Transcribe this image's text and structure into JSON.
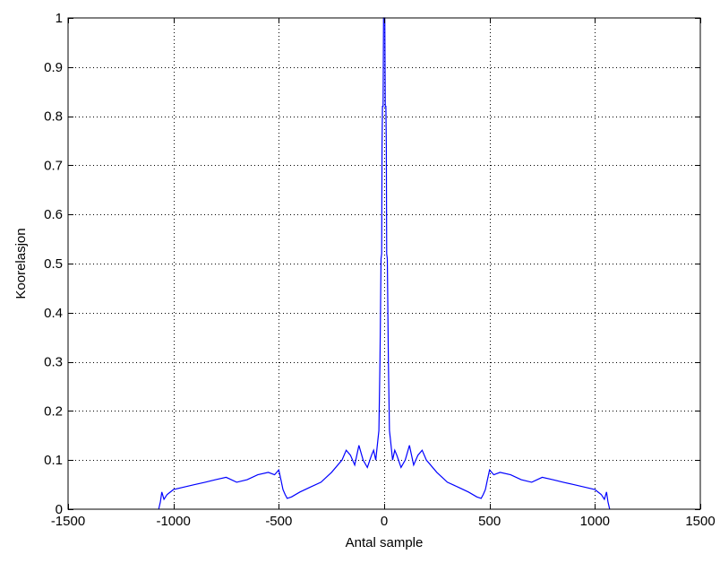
{
  "chart_data": {
    "type": "line",
    "title": "",
    "xlabel": "Antal sample",
    "ylabel": "Koorelasjon",
    "xlim": [
      -1500,
      1500
    ],
    "ylim": [
      0,
      1
    ],
    "xticks": [
      -1500,
      -1000,
      -500,
      0,
      500,
      1000,
      1500
    ],
    "xtick_labels": [
      "-1500",
      "-1000",
      "-500",
      "0",
      "500",
      "1000",
      "1500"
    ],
    "yticks": [
      0,
      0.1,
      0.2,
      0.3,
      0.4,
      0.5,
      0.6,
      0.7,
      0.8,
      0.9,
      1
    ],
    "ytick_labels": [
      "0",
      "0.1",
      "0.2",
      "0.3",
      "0.4",
      "0.5",
      "0.6",
      "0.7",
      "0.8",
      "0.9",
      "1"
    ],
    "grid": true,
    "legend": false,
    "series": [
      {
        "color": "#0000ff",
        "x": [
          -1070,
          -1062,
          -1055,
          -1045,
          -1030,
          -1000,
          -950,
          -900,
          -850,
          -800,
          -750,
          -700,
          -650,
          -600,
          -550,
          -520,
          -500,
          -490,
          -480,
          -470,
          -460,
          -440,
          -400,
          -350,
          -300,
          -250,
          -200,
          -180,
          -160,
          -140,
          -120,
          -100,
          -80,
          -60,
          -50,
          -40,
          -30,
          -25,
          -20,
          -15,
          -12,
          -10,
          -8,
          -5,
          -3,
          0,
          3,
          5,
          8,
          10,
          12,
          15,
          20,
          25,
          30,
          40,
          50,
          60,
          80,
          100,
          120,
          140,
          160,
          180,
          200,
          250,
          300,
          350,
          400,
          440,
          460,
          470,
          480,
          490,
          500,
          520,
          550,
          600,
          650,
          700,
          750,
          800,
          850,
          900,
          950,
          1000,
          1030,
          1045,
          1055,
          1062,
          1070
        ],
        "y": [
          0,
          0.015,
          0.035,
          0.02,
          0.03,
          0.04,
          0.045,
          0.05,
          0.055,
          0.06,
          0.065,
          0.055,
          0.06,
          0.07,
          0.075,
          0.07,
          0.08,
          0.06,
          0.04,
          0.03,
          0.022,
          0.025,
          0.035,
          0.045,
          0.055,
          0.075,
          0.1,
          0.12,
          0.11,
          0.09,
          0.13,
          0.1,
          0.085,
          0.11,
          0.12,
          0.1,
          0.14,
          0.16,
          0.3,
          0.51,
          0.52,
          0.74,
          0.82,
          0.82,
          1.0,
          1.0,
          1.0,
          0.82,
          0.82,
          0.74,
          0.52,
          0.51,
          0.3,
          0.16,
          0.14,
          0.1,
          0.12,
          0.11,
          0.085,
          0.1,
          0.13,
          0.09,
          0.11,
          0.12,
          0.1,
          0.075,
          0.055,
          0.045,
          0.035,
          0.025,
          0.022,
          0.03,
          0.04,
          0.06,
          0.08,
          0.07,
          0.075,
          0.07,
          0.06,
          0.055,
          0.065,
          0.06,
          0.055,
          0.05,
          0.045,
          0.04,
          0.03,
          0.02,
          0.035,
          0.015,
          0
        ]
      }
    ]
  }
}
